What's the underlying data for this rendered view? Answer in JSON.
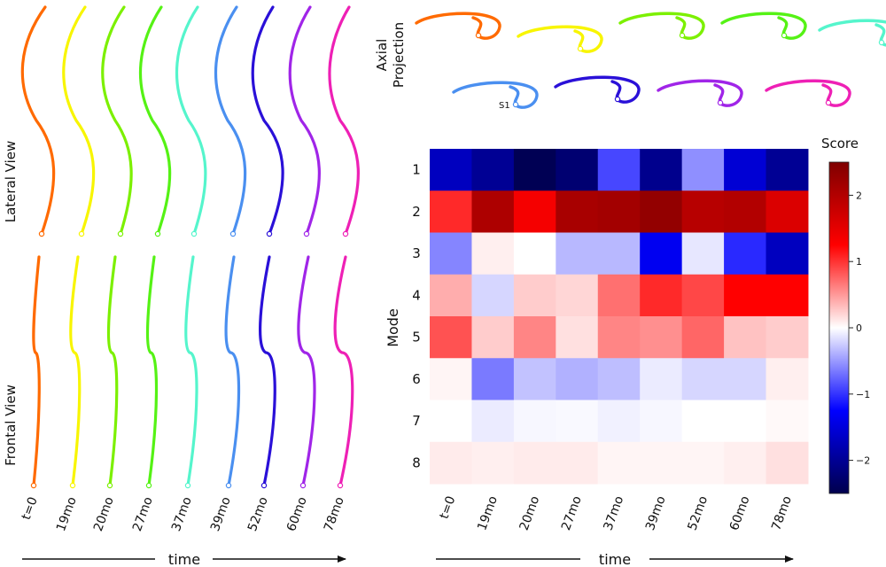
{
  "chart_data": {
    "type": "heatmap",
    "time_labels": [
      "t=0",
      "19mo",
      "20mo",
      "27mo",
      "37mo",
      "39mo",
      "52mo",
      "60mo",
      "78mo"
    ],
    "mode_labels": [
      "1",
      "2",
      "3",
      "4",
      "5",
      "6",
      "7",
      "8"
    ],
    "colors": [
      "#ff6a00",
      "#f8f500",
      "#7cf000",
      "#55f215",
      "#55f5cc",
      "#4a8ff0",
      "#2a10d8",
      "#a025e8",
      "#ee20b5"
    ],
    "ylabel": "Mode",
    "xlabel": "time",
    "colorbar_label": "Score",
    "colorbar_ticks": [
      2,
      1,
      0,
      -1,
      -2
    ],
    "colorbar_tick_labels": [
      "2",
      "1",
      "0",
      "−1",
      "−2"
    ],
    "vmin": -2.5,
    "vmax": 2.5,
    "colormap": "seismic",
    "values": [
      [
        -1.7,
        -2.0,
        -2.45,
        -2.25,
        -0.9,
        -2.05,
        -0.55,
        -1.55,
        -2.0
      ],
      [
        1.05,
        2.05,
        1.35,
        2.1,
        2.15,
        2.3,
        1.95,
        2.0,
        1.6
      ],
      [
        -0.6,
        0.08,
        0.0,
        -0.35,
        -0.35,
        -1.35,
        -0.12,
        -1.05,
        -1.7
      ],
      [
        0.4,
        -0.2,
        0.25,
        0.2,
        0.7,
        1.05,
        0.9,
        1.25,
        1.25
      ],
      [
        0.85,
        0.25,
        0.6,
        0.15,
        0.6,
        0.55,
        0.75,
        0.3,
        0.25
      ],
      [
        0.05,
        -0.65,
        -0.3,
        -0.38,
        -0.32,
        -0.1,
        -0.2,
        -0.2,
        0.08
      ],
      [
        0.0,
        -0.1,
        -0.04,
        -0.03,
        -0.07,
        -0.04,
        0.0,
        0.0,
        0.03
      ],
      [
        0.1,
        0.08,
        0.1,
        0.1,
        0.05,
        0.05,
        0.05,
        0.08,
        0.15
      ]
    ]
  },
  "panels": {
    "lateral_label": "Lateral View",
    "frontal_label": "Frontal View",
    "axial_label_line1": "Axial",
    "axial_label_line2": "Projection",
    "s1_label": "S1"
  }
}
